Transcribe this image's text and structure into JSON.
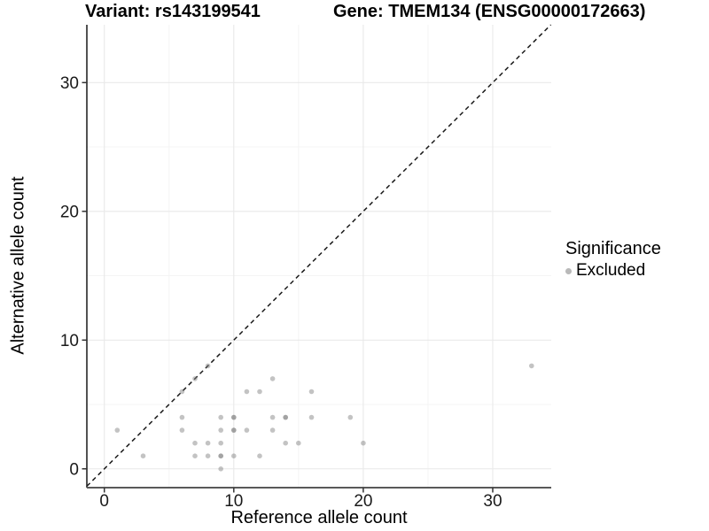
{
  "titles": {
    "variant": "Variant: rs143199541",
    "gene": "Gene: TMEM134 (ENSG00000172663)"
  },
  "legend": {
    "title": "Significance",
    "items": [
      {
        "label": "Excluded",
        "key_color": "#b9b9b9"
      }
    ]
  },
  "chart_data": {
    "type": "scatter",
    "title": "Variant: rs143199541 / Gene: TMEM134 (ENSG00000172663)",
    "xlabel": "Reference allele count",
    "ylabel": "Alternative allele count",
    "xlim": [
      -1.35,
      34.52
    ],
    "ylim": [
      -1.46,
      34.49
    ],
    "x_ticks": [
      0,
      10,
      20,
      30
    ],
    "y_ticks": [
      0,
      10,
      20,
      30
    ],
    "x_minor_ticks": [
      5,
      15,
      25
    ],
    "y_minor_ticks": [
      5,
      15,
      25
    ],
    "grid": "on",
    "legend_position": "right",
    "identity_line": {
      "equation": "y = x",
      "style": "dashed",
      "color": "#1a1a1a"
    },
    "series": [
      {
        "name": "Excluded",
        "color": "#808080",
        "opacity": 0.47,
        "points": [
          [
            1,
            3
          ],
          [
            3,
            1
          ],
          [
            6,
            3
          ],
          [
            6,
            4
          ],
          [
            6,
            6
          ],
          [
            7,
            1
          ],
          [
            7,
            2
          ],
          [
            7,
            7
          ],
          [
            8,
            1
          ],
          [
            8,
            2
          ],
          [
            8,
            8
          ],
          [
            9,
            0
          ],
          [
            9,
            1
          ],
          [
            9,
            1
          ],
          [
            9,
            2
          ],
          [
            9,
            3
          ],
          [
            9,
            4
          ],
          [
            10,
            1
          ],
          [
            10,
            3
          ],
          [
            10,
            3
          ],
          [
            10,
            4
          ],
          [
            10,
            4
          ],
          [
            11,
            3
          ],
          [
            11,
            6
          ],
          [
            12,
            1
          ],
          [
            12,
            6
          ],
          [
            13,
            3
          ],
          [
            13,
            4
          ],
          [
            13,
            7
          ],
          [
            14,
            2
          ],
          [
            14,
            4
          ],
          [
            14,
            4
          ],
          [
            15,
            2
          ],
          [
            16,
            4
          ],
          [
            16,
            6
          ],
          [
            19,
            4
          ],
          [
            20,
            2
          ],
          [
            33,
            8
          ]
        ]
      }
    ],
    "style": {
      "major_grid_color": "#e9e9e9",
      "minor_grid_color": "#f4f4f4",
      "axis_line_left_color": "#262626",
      "axis_line_bottom_color": "#595959",
      "tick_color": "#333333",
      "tick_label_color": "#1a1a1a"
    }
  }
}
